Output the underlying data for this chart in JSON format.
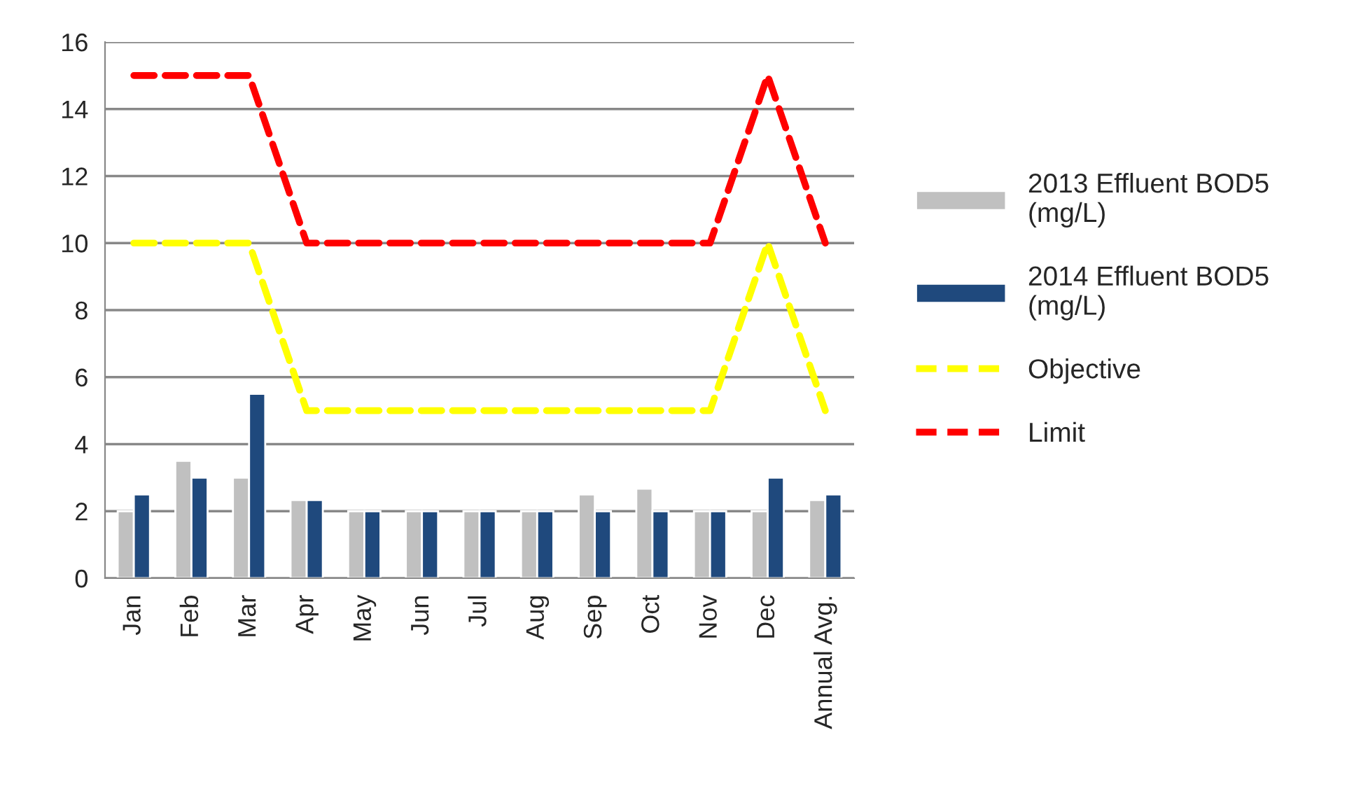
{
  "chart_data": {
    "type": "bar",
    "categories": [
      "Jan",
      "Feb",
      "Mar",
      "Apr",
      "May",
      "Jun",
      "Jul",
      "Aug",
      "Sep",
      "Oct",
      "Nov",
      "Dec",
      "Annual Avg."
    ],
    "series": [
      {
        "name": "2013 Effluent BOD5 (mg/L)",
        "color": "#c0c0c0",
        "values": [
          2,
          3.5,
          3,
          2.33,
          2,
          2,
          2,
          2,
          2.5,
          2.67,
          2,
          2,
          2.33
        ]
      },
      {
        "name": "2014 Effluent BOD5 (mg/L)",
        "color": "#1f497d",
        "values": [
          2.5,
          3,
          5.5,
          2.33,
          2,
          2,
          2,
          2,
          2,
          2,
          2,
          3,
          2.5
        ]
      },
      {
        "name": "Objective",
        "type": "line",
        "line_style": "dashed",
        "color": "#ffff00",
        "values": [
          10,
          10,
          10,
          5,
          5,
          5,
          5,
          5,
          5,
          5,
          5,
          10,
          5
        ]
      },
      {
        "name": "Limit",
        "type": "line",
        "line_style": "dashed",
        "color": "#ff0000",
        "values": [
          15,
          15,
          15,
          10,
          10,
          10,
          10,
          10,
          10,
          10,
          10,
          15,
          10
        ]
      }
    ],
    "ylim": [
      0,
      16
    ],
    "yticks": [
      0,
      2,
      4,
      6,
      8,
      10,
      12,
      14,
      16
    ],
    "grid": "y",
    "legend": "right"
  }
}
